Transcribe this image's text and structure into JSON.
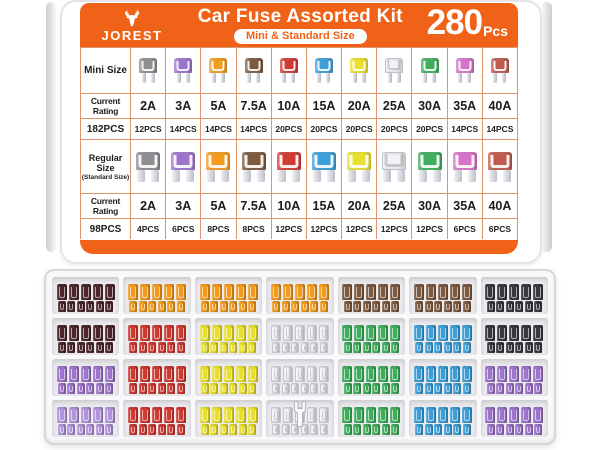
{
  "brand": {
    "name": "JOREST",
    "logo_icon": "deer-icon"
  },
  "header": {
    "title": "Car Fuse Assorted Kit",
    "size_badge": "Mini & Standard Size",
    "piece_count": "280",
    "piece_unit": "Pcs"
  },
  "colors": {
    "accent_orange": "#f06218",
    "table_line": "#e0946a",
    "fuse_palette": {
      "gray": "#8e8e92",
      "violet": "#9d74cc",
      "orange": "#f29b1d",
      "brown": "#7d5a40",
      "red": "#cf3a32",
      "blue": "#3e9fd8",
      "yellow": "#e9e02e",
      "white": "#f2f3f5",
      "green": "#3fae5c",
      "pink": "#d573c8",
      "rust": "#bf5a4e",
      "dark_maroon": "#4b262c",
      "black": "#3a373c",
      "lavender": "#b394dc"
    }
  },
  "table": {
    "mini_label": "Mini Size",
    "current_rating_label": "Current Rating",
    "mini_total": "182PCS",
    "regular_label": "Regular Size",
    "regular_sublabel": "(Standard Size)",
    "regular_total": "98PCS",
    "ratings": [
      "2A",
      "3A",
      "5A",
      "7.5A",
      "10A",
      "15A",
      "20A",
      "25A",
      "30A",
      "35A",
      "40A"
    ],
    "fuse_colors": [
      "gray",
      "violet",
      "orange",
      "brown",
      "red",
      "blue",
      "yellow",
      "white",
      "green",
      "pink",
      "rust"
    ],
    "mini_counts": [
      "12PCS",
      "14PCS",
      "14PCS",
      "14PCS",
      "20PCS",
      "20PCS",
      "20PCS",
      "20PCS",
      "20PCS",
      "14PCS",
      "14PCS"
    ],
    "regular_counts": [
      "4PCS",
      "6PCS",
      "8PCS",
      "8PCS",
      "12PCS",
      "12PCS",
      "12PCS",
      "12PCS",
      "12PCS",
      "6PCS",
      "6PCS"
    ]
  },
  "tray": {
    "rows": [
      [
        "dark_maroon",
        "orange",
        "orange",
        "orange",
        "brown",
        "brown",
        "black"
      ],
      [
        "dark_maroon",
        "red",
        "yellow",
        "white",
        "green",
        "blue",
        "black"
      ],
      [
        "violet",
        "red",
        "yellow",
        "white",
        "green",
        "blue",
        "violet"
      ],
      [
        "lavender",
        "red",
        "yellow",
        "white",
        "green",
        "blue",
        "violet"
      ]
    ],
    "puller": {
      "row": 4,
      "col": 4,
      "name": "fuse-puller-tool"
    }
  }
}
